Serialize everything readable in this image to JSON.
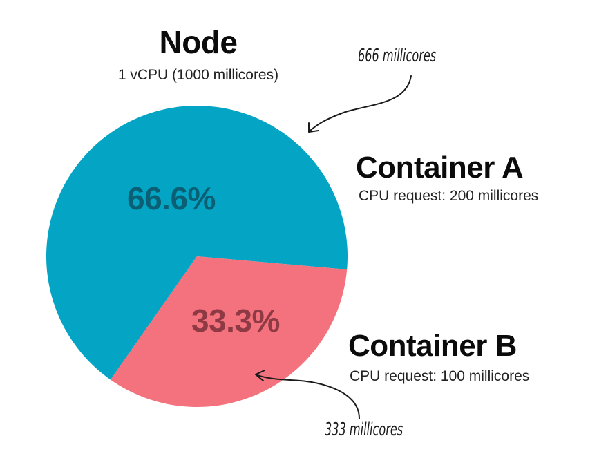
{
  "chart_data": {
    "type": "pie",
    "title": "Node",
    "subtitle": "1 vCPU (1000 millicores)",
    "slices": [
      {
        "name": "Container A",
        "percent_label": "66.6%",
        "value": 66.6,
        "detail": "CPU request: 200 millicores",
        "annotation": "666 millicores",
        "color": "#03a4c4"
      },
      {
        "name": "Container B",
        "percent_label": "33.3%",
        "value": 33.3,
        "detail": "CPU request: 100 millicores",
        "annotation": "333 millicores",
        "color": "#f4727d"
      }
    ],
    "legend": "none",
    "grid": false
  },
  "colors": {
    "slice_a_label": "#0b5f74",
    "slice_b_label": "#8e3a45",
    "text": "#0b0b0b",
    "arrow": "#1a1a1a"
  }
}
